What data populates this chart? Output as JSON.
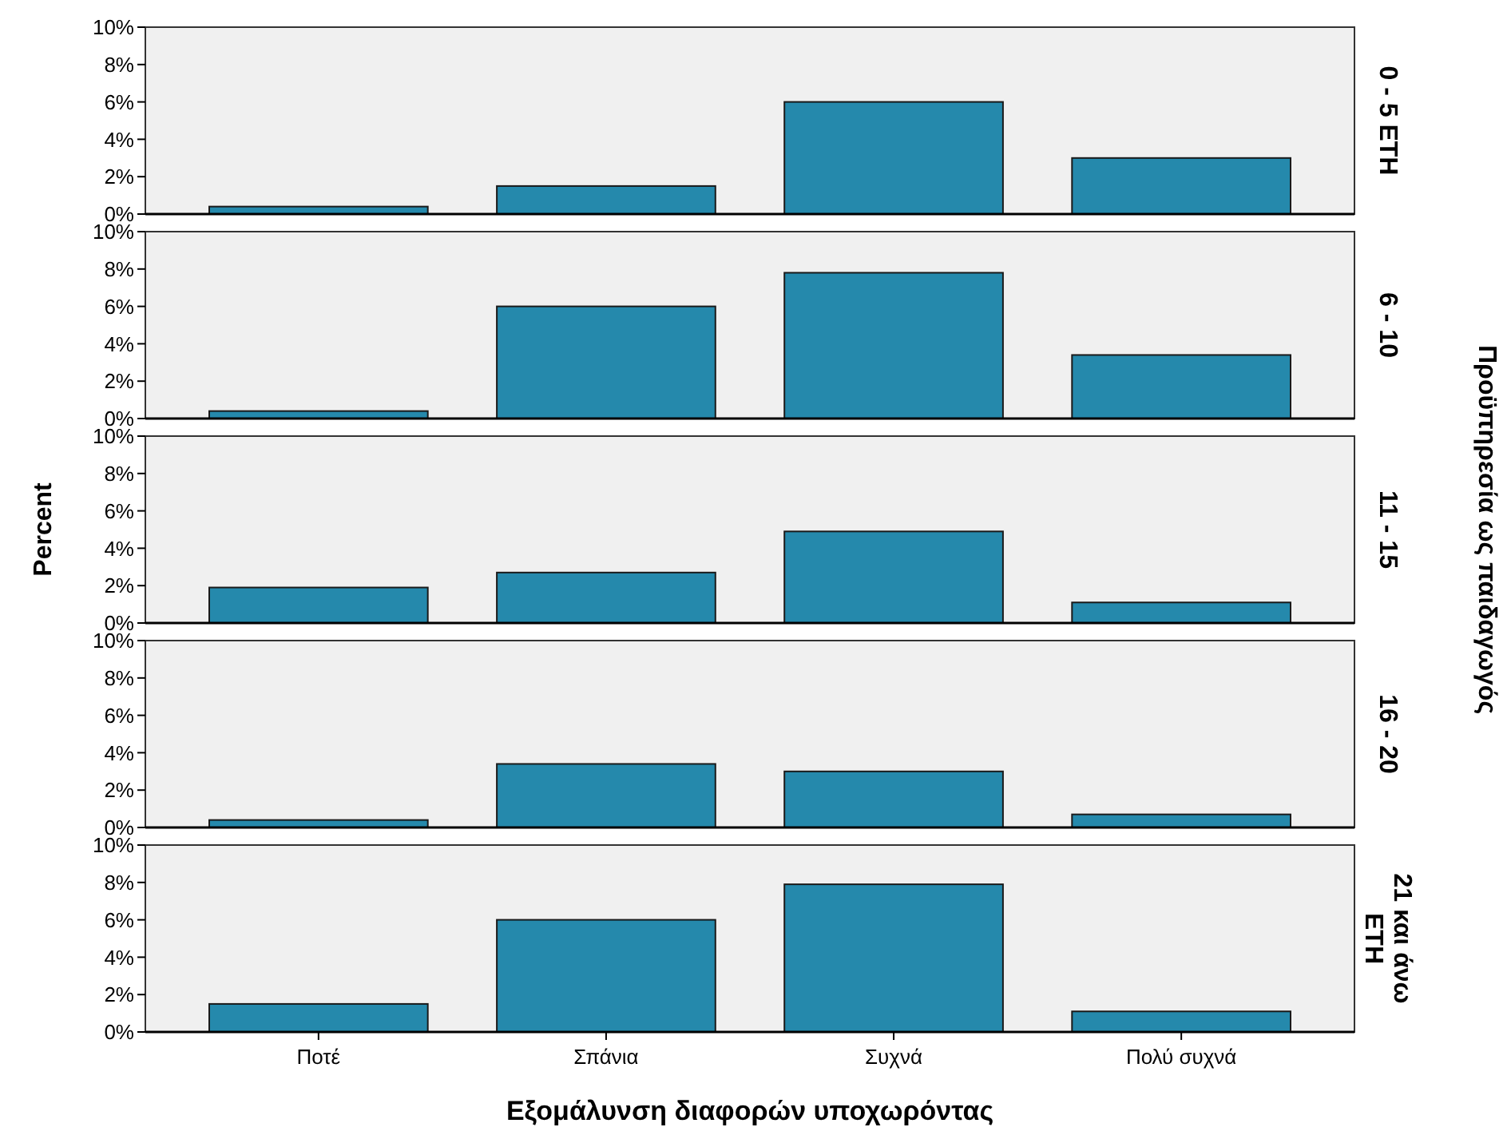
{
  "chart_data": [
    {
      "type": "bar",
      "y2label": "0 - 5 ΕΤΗ",
      "categories": [
        null,
        null,
        null,
        null
      ],
      "values": [
        0.4,
        1.5,
        6.0,
        3.0
      ],
      "color": "#2589ac",
      "ylim": [
        0,
        10
      ],
      "yticks": [
        {
          "value": 0,
          "label": "0%"
        },
        {
          "value": 2,
          "label": "2%"
        },
        {
          "value": 4,
          "label": "4%"
        },
        {
          "value": 6,
          "label": "6%"
        },
        {
          "value": 8,
          "label": "8%"
        },
        {
          "value": 10,
          "label": "10%"
        }
      ],
      "tick_labels": "y"
    },
    {
      "type": "bar",
      "y2label": "6 - 10",
      "categories": [
        null,
        null,
        null,
        null
      ],
      "values": [
        0.4,
        6.0,
        7.8,
        3.4
      ],
      "color": "#2589ac",
      "ylim": [
        0,
        10
      ],
      "yticks": [
        {
          "value": 0,
          "label": "0%"
        },
        {
          "value": 2,
          "label": "2%"
        },
        {
          "value": 4,
          "label": "4%"
        },
        {
          "value": 6,
          "label": "6%"
        },
        {
          "value": 8,
          "label": "8%"
        },
        {
          "value": 10,
          "label": "10%"
        }
      ],
      "tick_labels": "y"
    },
    {
      "type": "bar",
      "y2label": "11 - 15",
      "ylabel": "Percent",
      "annotations": [
        "Προϋπηρεσία ως παιδαγωγός"
      ],
      "categories": [
        null,
        null,
        null,
        null
      ],
      "values": [
        1.9,
        2.7,
        4.9,
        1.1
      ],
      "color": "#2589ac",
      "ylim": [
        0,
        10
      ],
      "yticks": [
        {
          "value": 0,
          "label": "0%"
        },
        {
          "value": 2,
          "label": "2%"
        },
        {
          "value": 4,
          "label": "4%"
        },
        {
          "value": 6,
          "label": "6%"
        },
        {
          "value": 8,
          "label": "8%"
        },
        {
          "value": 10,
          "label": "10%"
        }
      ],
      "tick_labels": "y"
    },
    {
      "type": "bar",
      "y2label": "16 - 20",
      "categories": [
        null,
        null,
        null,
        null
      ],
      "values": [
        0.4,
        3.4,
        3.0,
        0.7
      ],
      "color": "#2589ac",
      "ylim": [
        0,
        10
      ],
      "yticks": [
        {
          "value": 0,
          "label": "0%"
        },
        {
          "value": 2,
          "label": "2%"
        },
        {
          "value": 4,
          "label": "4%"
        },
        {
          "value": 6,
          "label": "6%"
        },
        {
          "value": 8,
          "label": "8%"
        },
        {
          "value": 10,
          "label": "10%"
        }
      ],
      "tick_labels": "y"
    },
    {
      "type": "bar",
      "y2label": "21 και άνω ΕΤΗ",
      "xlabel": "Εξομάλυνση διαφορών υποχωρόντας",
      "categories": [
        "Ποτέ",
        "Σπάνια",
        "Συχνά",
        "Πολύ συχνά"
      ],
      "values": [
        1.5,
        6.0,
        7.9,
        1.1
      ],
      "color": "#2589ac",
      "ylim": [
        0,
        10
      ],
      "yticks": [
        {
          "value": 0,
          "label": "0%"
        },
        {
          "value": 2,
          "label": "2%"
        },
        {
          "value": 4,
          "label": "4%"
        },
        {
          "value": 6,
          "label": "6%"
        },
        {
          "value": 8,
          "label": "8%"
        },
        {
          "value": 10,
          "label": "10%"
        }
      ]
    }
  ]
}
